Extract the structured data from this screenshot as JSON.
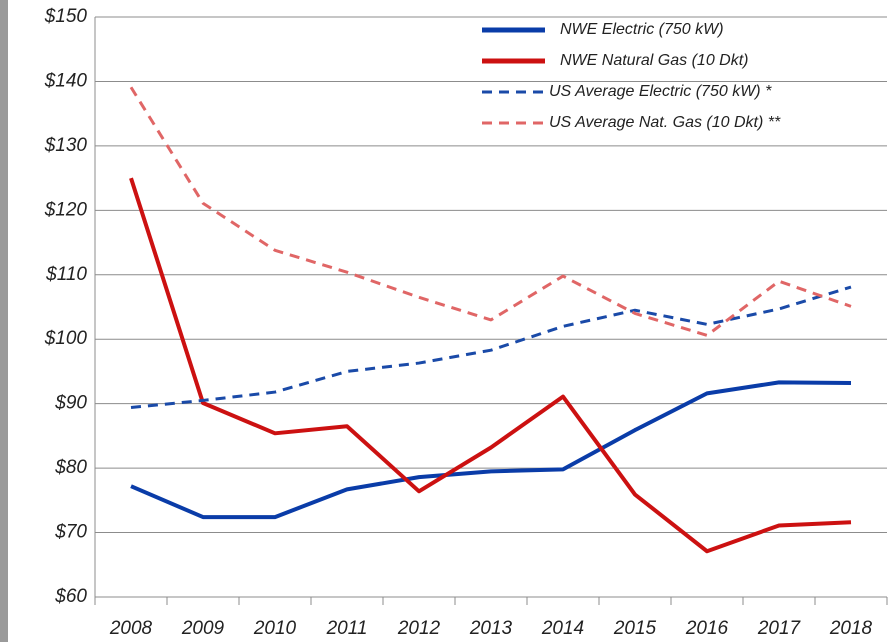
{
  "chart_data": {
    "type": "line",
    "categories": [
      "2008",
      "2009",
      "2010",
      "2011",
      "2012",
      "2013",
      "2014",
      "2015",
      "2016",
      "2017",
      "2018"
    ],
    "series": [
      {
        "name": "NWE Electric (750 kW)",
        "color": "#0a3ca8",
        "dash": false,
        "values": [
          77.2,
          72.4,
          72.4,
          76.7,
          78.6,
          79.5,
          79.8,
          85.9,
          91.6,
          93.3,
          93.2
        ]
      },
      {
        "name": "NWE Natural Gas (10 Dkt)",
        "color": "#cc1111",
        "dash": false,
        "values": [
          125,
          90.1,
          85.4,
          86.5,
          76.4,
          83.2,
          91.1,
          75.9,
          67.1,
          71.1,
          71.6
        ]
      },
      {
        "name": "US Average Electric (750 kW) *",
        "color": "#1a4aa8",
        "dash": true,
        "values": [
          89.4,
          90.5,
          91.8,
          95.0,
          96.3,
          98.3,
          102.0,
          104.5,
          102.3,
          104.7,
          108.1
        ]
      },
      {
        "name": "US Average Nat. Gas (10 Dkt) **",
        "color": "#e06666",
        "dash": true,
        "values": [
          139.1,
          121.1,
          113.8,
          110.4,
          106.5,
          103,
          109.8,
          104,
          100.6,
          109,
          105.1
        ]
      }
    ],
    "ylim": [
      60,
      150
    ],
    "yticks": [
      {
        "value": 60,
        "label": "$60"
      },
      {
        "value": 70,
        "label": "$70"
      },
      {
        "value": 80,
        "label": "$80"
      },
      {
        "value": 90,
        "label": "$90"
      },
      {
        "value": 100,
        "label": "$100"
      },
      {
        "value": 110,
        "label": "$110"
      },
      {
        "value": 120,
        "label": "$120"
      },
      {
        "value": 130,
        "label": "$130"
      },
      {
        "value": 140,
        "label": "$140"
      },
      {
        "value": 150,
        "label": "$150"
      }
    ],
    "grid": true,
    "legend": "top-right"
  }
}
